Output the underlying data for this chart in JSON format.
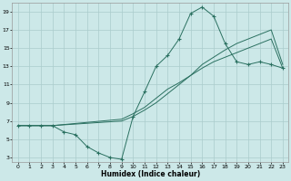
{
  "xlabel": "Humidex (Indice chaleur)",
  "bg_color": "#cce8e8",
  "grid_color": "#aacccc",
  "line_color": "#2a7060",
  "marker": "+",
  "xlim": [
    -0.5,
    23.5
  ],
  "ylim": [
    2.5,
    20
  ],
  "xticks": [
    0,
    1,
    2,
    3,
    4,
    5,
    6,
    7,
    8,
    9,
    10,
    11,
    12,
    13,
    14,
    15,
    16,
    17,
    18,
    19,
    20,
    21,
    22,
    23
  ],
  "yticks": [
    3,
    5,
    7,
    9,
    11,
    13,
    15,
    17,
    19
  ],
  "line1_x": [
    0,
    1,
    2,
    3,
    4,
    5,
    6,
    7,
    8,
    9,
    10,
    11,
    12,
    13,
    14,
    15,
    16,
    17,
    18,
    19,
    20,
    21,
    22,
    23
  ],
  "line1_y": [
    6.5,
    6.5,
    6.5,
    6.5,
    5.8,
    5.5,
    4.2,
    3.5,
    3.0,
    2.8,
    7.5,
    10.2,
    13.0,
    14.2,
    16.0,
    18.8,
    19.5,
    18.5,
    15.5,
    13.5,
    13.2,
    13.5,
    13.2,
    12.8
  ],
  "line2_x": [
    0,
    3,
    9,
    10,
    11,
    12,
    13,
    14,
    15,
    16,
    17,
    18,
    19,
    20,
    21,
    22,
    23
  ],
  "line2_y": [
    6.5,
    6.5,
    7.2,
    7.8,
    8.5,
    9.5,
    10.5,
    11.2,
    12.0,
    12.8,
    13.5,
    14.0,
    14.5,
    15.0,
    15.5,
    16.0,
    12.8
  ],
  "line3_x": [
    0,
    3,
    9,
    10,
    11,
    12,
    13,
    14,
    15,
    16,
    17,
    18,
    19,
    20,
    21,
    22,
    23
  ],
  "line3_y": [
    6.5,
    6.5,
    7.0,
    7.5,
    8.2,
    9.0,
    10.0,
    11.0,
    12.0,
    13.2,
    14.0,
    14.8,
    15.5,
    16.0,
    16.5,
    17.0,
    13.2
  ]
}
